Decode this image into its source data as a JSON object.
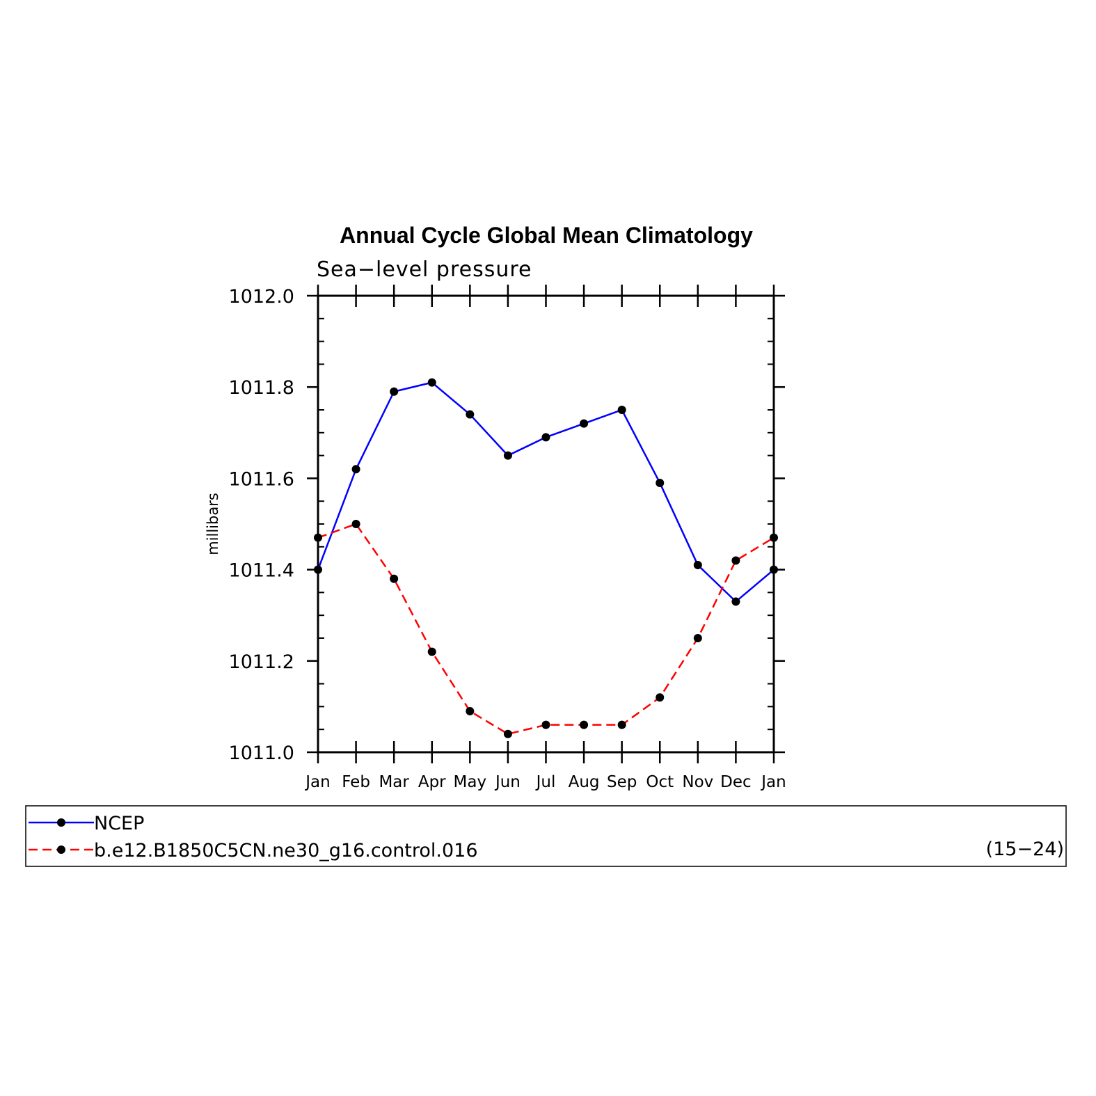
{
  "chart_data": {
    "type": "line",
    "title": "Annual Cycle Global Mean Climatology",
    "subtitle": "Sea−level pressure",
    "ylabel": "millibars",
    "xlabel": "",
    "categories": [
      "Jan",
      "Feb",
      "Mar",
      "Apr",
      "May",
      "Jun",
      "Jul",
      "Aug",
      "Sep",
      "Oct",
      "Nov",
      "Dec",
      "Jan"
    ],
    "ylim": [
      1011.0,
      1012.0
    ],
    "yticks": [
      1011.0,
      1011.2,
      1011.4,
      1011.6,
      1011.8,
      1012.0
    ],
    "ytick_labels": [
      "1011.0",
      "1011.2",
      "1011.4",
      "1011.6",
      "1011.8",
      "1012.0"
    ],
    "y_minor_step": 0.05,
    "grid": false,
    "series": [
      {
        "name": "NCEP",
        "color": "#0000ff",
        "dash": "solid",
        "marker": "filled-circle",
        "values": [
          1011.4,
          1011.62,
          1011.79,
          1011.81,
          1011.74,
          1011.65,
          1011.69,
          1011.72,
          1011.75,
          1011.59,
          1011.41,
          1011.33,
          1011.4
        ]
      },
      {
        "name": "b.e12.B1850C5CN.ne30_g16.control.016",
        "color": "#ff0000",
        "dash": "dashed",
        "marker": "filled-circle",
        "values": [
          1011.47,
          1011.5,
          1011.38,
          1011.22,
          1011.09,
          1011.04,
          1011.06,
          1011.06,
          1011.06,
          1011.12,
          1011.25,
          1011.42,
          1011.47
        ]
      }
    ],
    "legend": {
      "placement": "bottom",
      "note": "(15−24)"
    }
  }
}
